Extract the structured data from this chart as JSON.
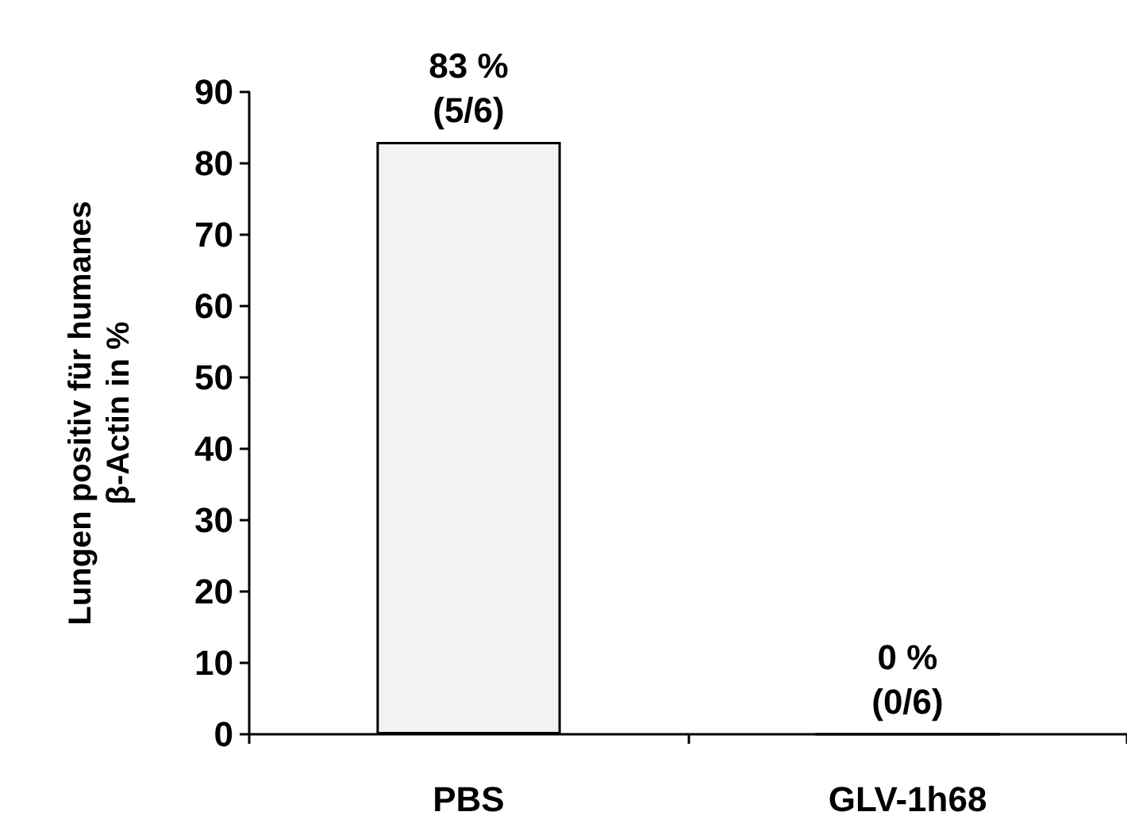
{
  "chart_data": {
    "type": "bar",
    "ylabel": "Lungen positiv für humanes\nβ-Actin in %",
    "categories": [
      "PBS",
      "GLV-1h68"
    ],
    "values": [
      83,
      0
    ],
    "value_labels": [
      "83 %\n(5/6)",
      "0 %\n(0/6)"
    ],
    "color": "#f2f2f2",
    "ylim": [
      0,
      90
    ],
    "yticks": [
      0,
      10,
      20,
      30,
      40,
      50,
      60,
      70,
      80,
      90
    ],
    "grid": false
  }
}
